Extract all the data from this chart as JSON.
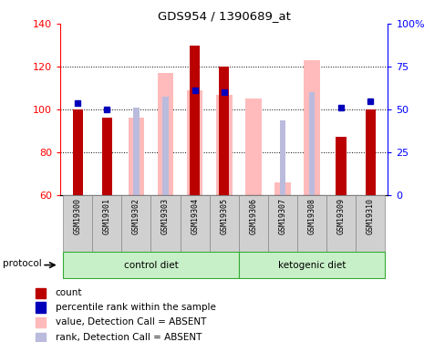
{
  "title": "GDS954 / 1390689_at",
  "samples": [
    "GSM19300",
    "GSM19301",
    "GSM19302",
    "GSM19303",
    "GSM19304",
    "GSM19305",
    "GSM19306",
    "GSM19307",
    "GSM19308",
    "GSM19309",
    "GSM19310"
  ],
  "count_values": [
    100,
    96,
    null,
    null,
    130,
    120,
    null,
    null,
    null,
    87,
    100
  ],
  "percentile_values": [
    103,
    100,
    null,
    null,
    109,
    108,
    null,
    null,
    null,
    101,
    104
  ],
  "absent_value_values": [
    null,
    null,
    96,
    117,
    109,
    107,
    105,
    66,
    123,
    null,
    null
  ],
  "absent_rank_values": [
    null,
    null,
    101,
    106,
    109,
    107,
    null,
    95,
    108,
    null,
    null
  ],
  "ylim_left": [
    60,
    140
  ],
  "ylim_right": [
    0,
    100
  ],
  "yticks_left": [
    60,
    80,
    100,
    120,
    140
  ],
  "yticks_right": [
    0,
    25,
    50,
    75,
    100
  ],
  "count_color": "#bb0000",
  "percentile_color": "#0000bb",
  "absent_value_color": "#ffbbbb",
  "absent_rank_color": "#bbbbdd",
  "legend_items": [
    {
      "label": "count",
      "color": "#bb0000"
    },
    {
      "label": "percentile rank within the sample",
      "color": "#0000bb"
    },
    {
      "label": "value, Detection Call = ABSENT",
      "color": "#ffbbbb"
    },
    {
      "label": "rank, Detection Call = ABSENT",
      "color": "#bbbbdd"
    }
  ],
  "ctrl_diet_label": "control diet",
  "keto_diet_label": "ketogenic diet",
  "protocol_label": "protocol",
  "ctrl_indices": [
    0,
    1,
    2,
    3,
    4,
    5
  ],
  "keto_indices": [
    6,
    7,
    8,
    9,
    10
  ],
  "group_green_light": "#c8f0c8",
  "group_green_dark": "#44cc44",
  "sample_box_color": "#d0d0d0"
}
